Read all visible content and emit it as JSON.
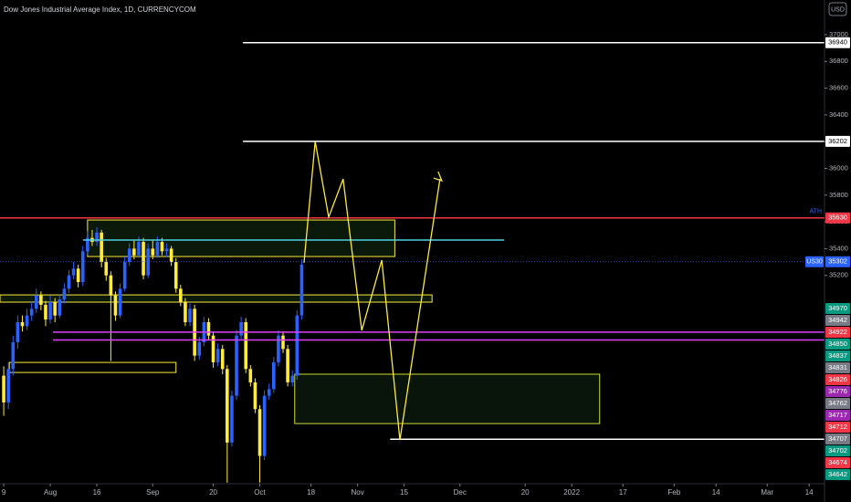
{
  "chart_data": {
    "type": "candlestick",
    "title": "Dow Jones Industrial Average Index, 1D, CURRENCYCOM",
    "currency": "USD",
    "symbol": "US30",
    "ath_label": "ATH",
    "up_color": "#2962ff",
    "down_color": "#ffeb3b",
    "xlim": [
      -0.8,
      176.3
    ],
    "ylim": [
      33642,
      37259
    ],
    "xticks": [
      {
        "value": 0,
        "label": "9"
      },
      {
        "value": 10,
        "label": "Aug"
      },
      {
        "value": 20,
        "label": "16"
      },
      {
        "value": 32,
        "label": "Sep"
      },
      {
        "value": 45,
        "label": "20"
      },
      {
        "value": 55,
        "label": "Oct"
      },
      {
        "value": 66,
        "label": "18"
      },
      {
        "value": 76,
        "label": "Nov"
      },
      {
        "value": 86,
        "label": "15"
      },
      {
        "value": 98,
        "label": "Dec"
      },
      {
        "value": 112,
        "label": "20"
      },
      {
        "value": 122,
        "label": "2022"
      },
      {
        "value": 133,
        "label": "17"
      },
      {
        "value": 144,
        "label": "Feb"
      },
      {
        "value": 153,
        "label": "14"
      },
      {
        "value": 164,
        "label": "Mar"
      },
      {
        "value": 173,
        "label": "14"
      }
    ],
    "yticks": [
      35200,
      35400,
      35600,
      35800,
      36000,
      36200,
      36400,
      36600,
      36800,
      37000
    ],
    "open": [
      34450,
      34250,
      34500,
      34700,
      34850,
      34820,
      34900,
      34950,
      35050,
      34980,
      34870,
      35000,
      34900,
      35020,
      35100,
      35200,
      35250,
      35150,
      35380,
      35480,
      35450,
      35520,
      35300,
      35200,
      35050,
      34900,
      35100,
      35300,
      35400,
      35350,
      35450,
      35200,
      35400,
      35350,
      35450,
      35380,
      35400,
      35300,
      35100,
      35000,
      34850,
      34950,
      34600,
      34700,
      34850,
      34750,
      34550,
      34650,
      34500,
      33950,
      34300,
      34750,
      34850,
      34500,
      34400,
      34200,
      33850,
      34300,
      34350,
      34550,
      34750,
      34650,
      34400,
      34450,
      34900
    ],
    "high": [
      34520,
      34550,
      34750,
      34900,
      34900,
      34950,
      35000,
      35100,
      35080,
      35010,
      35050,
      35030,
      35060,
      35140,
      35240,
      35300,
      35280,
      35420,
      35530,
      35540,
      35560,
      35540,
      35330,
      35230,
      35080,
      35140,
      35340,
      35440,
      35460,
      35490,
      35480,
      35440,
      35460,
      35490,
      35480,
      35440,
      35420,
      35330,
      35130,
      35030,
      34990,
      34980,
      34740,
      34890,
      34880,
      34780,
      34690,
      34680,
      34530,
      34340,
      34790,
      34890,
      34880,
      34530,
      34430,
      34230,
      34340,
      34390,
      34590,
      34790,
      34780,
      34680,
      34490,
      34940,
      35320
    ],
    "low": [
      34150,
      34200,
      34450,
      34650,
      34780,
      34790,
      34860,
      34920,
      34940,
      34820,
      34840,
      34850,
      34880,
      34990,
      35070,
      35170,
      35110,
      35120,
      35350,
      35420,
      35420,
      35260,
      35160,
      34560,
      34860,
      34880,
      35080,
      35270,
      35320,
      35330,
      35170,
      35180,
      35320,
      35330,
      35350,
      35340,
      35270,
      35070,
      34970,
      34820,
      34820,
      34560,
      34570,
      34670,
      34720,
      34510,
      34520,
      34460,
      33650,
      33920,
      34270,
      34720,
      34470,
      34370,
      34170,
      33650,
      33820,
      34270,
      34320,
      34520,
      34620,
      34370,
      34370,
      34420,
      34870
    ],
    "close": [
      34250,
      34500,
      34700,
      34850,
      34820,
      34900,
      34950,
      35050,
      34980,
      34870,
      35000,
      34900,
      35020,
      35100,
      35200,
      35250,
      35150,
      35380,
      35480,
      35450,
      35520,
      35300,
      35200,
      35050,
      34900,
      35100,
      35300,
      35400,
      35350,
      35450,
      35200,
      35400,
      35350,
      35450,
      35380,
      35400,
      35300,
      35100,
      35000,
      34850,
      34950,
      34600,
      34700,
      34850,
      34750,
      34550,
      34650,
      34500,
      33950,
      34300,
      34750,
      34850,
      34500,
      34400,
      34200,
      33850,
      34300,
      34350,
      34550,
      34750,
      34650,
      34400,
      34450,
      34900,
      35280
    ],
    "hlines": [
      {
        "price": 36940,
        "color": "#ffffff",
        "from": 51.4,
        "axis_label": true
      },
      {
        "price": 36202,
        "color": "#ffffff",
        "from": 51.4,
        "axis_label": true
      },
      {
        "price": 35630,
        "color": "#f23645",
        "axis_label": true
      },
      {
        "price": 35302,
        "color": "#2962ff",
        "dashed": true,
        "axis_label": true
      },
      {
        "price": 35464,
        "color": "#4dd0e1",
        "from": 17,
        "to": 107.5
      },
      {
        "price": 34776,
        "color": "#e040fb",
        "from": 10.6
      },
      {
        "price": 34717,
        "color": "#e040fb",
        "from": 10.6
      },
      {
        "price": 33975,
        "color": "#ffffff",
        "from": 83
      }
    ],
    "boxes": [
      {
        "from": 18,
        "to": 84,
        "top": 35614,
        "bottom": 35341,
        "color": "#ffeb3b",
        "fill": "rgba(76,175,80,0.14)"
      },
      {
        "from": -0.8,
        "to": 92,
        "top": 35054,
        "bottom": 35000,
        "color": "#ffeb3b",
        "fill": "rgba(76,175,80,0.14)"
      },
      {
        "from": 1.2,
        "to": 37,
        "top": 34549,
        "bottom": 34474,
        "color": "#ffeb3b"
      },
      {
        "from": 62.5,
        "to": 128,
        "top": 34461,
        "bottom": 34092,
        "color": "#cddc39",
        "fill": "rgba(76,175,80,0.12)"
      }
    ],
    "zigzag": {
      "color": "#ffeb3b",
      "x": [
        64.5,
        66.9,
        69.8,
        72.9,
        76.9,
        81.2,
        85.1,
        93.7
      ],
      "y": [
        35294,
        36201,
        35635,
        35921,
        34788,
        35314,
        33969,
        35921
      ]
    },
    "price_labels": [
      {
        "value": 34970,
        "color": "#089981"
      },
      {
        "value": 34942,
        "color": "#787b86"
      },
      {
        "value": 34922,
        "color": "#f23645"
      },
      {
        "value": 34850,
        "color": "#089981"
      },
      {
        "value": 34837,
        "color": "#089981"
      },
      {
        "value": 34831,
        "color": "#787b86"
      },
      {
        "value": 34826,
        "color": "#f23645"
      },
      {
        "value": 34776,
        "color": "#9c27b0"
      },
      {
        "value": 34762,
        "color": "#787b86"
      },
      {
        "value": 34717,
        "color": "#9c27b0"
      },
      {
        "value": 34712,
        "color": "#f23645"
      },
      {
        "value": 34707,
        "color": "#787b86"
      },
      {
        "value": 34702,
        "color": "#089981"
      },
      {
        "value": 34674,
        "color": "#f23645"
      },
      {
        "value": 34642,
        "color": "#089981"
      }
    ]
  }
}
